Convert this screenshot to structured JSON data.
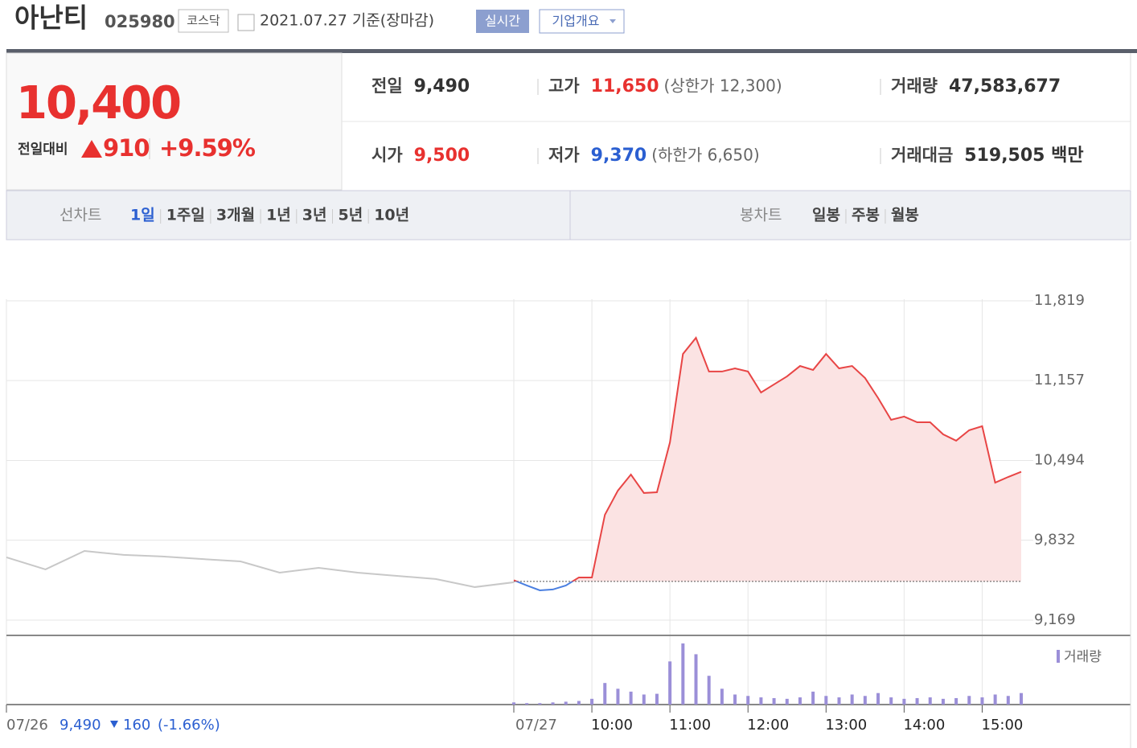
{
  "header": {
    "name": "아난티",
    "code": "025980",
    "market": "코스닥",
    "date": "2021.07.27 기준(장마감)",
    "buttons": [
      "실시간",
      "기업개요"
    ]
  },
  "price": {
    "current": "10,400",
    "change_label": "전일대비",
    "change": "910",
    "rate": "+9.59%"
  },
  "stats": [
    {
      "label": "전일",
      "value": "9,490"
    },
    {
      "label": "고가",
      "value": "11,650",
      "limit": "(상한가 12,300)"
    },
    {
      "label": "거래량",
      "value": "47,583,677"
    },
    {
      "label": "시가",
      "value": "9,500"
    },
    {
      "label": "저가",
      "value": "9,370",
      "limit": "(하한가 6,650)"
    },
    {
      "label": "거래대금",
      "value": "519,505 백만"
    }
  ],
  "tabs": {
    "line_label": "선차트",
    "line": [
      "1일",
      "1주일",
      "3개월",
      "1년",
      "3년",
      "5년",
      "10년"
    ],
    "candle_label": "봉차트",
    "candle": [
      "일봉",
      "주봉",
      "월봉"
    ]
  },
  "chart": {
    "ylim": [
      9042,
      11819
    ],
    "yticks": [
      {
        "value": 11819,
        "label": "11,819"
      },
      {
        "value": 11157,
        "label": "11,157"
      },
      {
        "value": 10494,
        "label": "10,494"
      },
      {
        "value": 9832,
        "label": "9,832"
      },
      {
        "value": 9169,
        "label": "9,169"
      }
    ],
    "xlim": [
      -390,
      390
    ],
    "xticks": [
      {
        "value": -390,
        "label": "07/26"
      },
      {
        "value": 0,
        "label": "07/27"
      },
      {
        "value": 60,
        "label": "10:00"
      },
      {
        "value": 120,
        "label": "11:00"
      },
      {
        "value": 180,
        "label": "12:00"
      },
      {
        "value": 240,
        "label": "13:00"
      },
      {
        "value": 300,
        "label": "14:00"
      },
      {
        "value": 360,
        "label": "15:00"
      }
    ],
    "base": 9490,
    "prev": {
      "x": [
        -390,
        -360,
        -330,
        -300,
        -270,
        -240,
        -210,
        -180,
        -150,
        -120,
        -90,
        -60,
        -30,
        0
      ],
      "values": [
        9690,
        9590,
        9743,
        9710,
        9697,
        9676,
        9656,
        9563,
        9603,
        9563,
        9536,
        9510,
        9443,
        9483
      ]
    },
    "today": {
      "x": [
        0,
        10,
        20,
        30,
        40,
        50,
        60,
        70,
        80,
        90,
        100,
        110,
        120,
        130,
        140,
        150,
        160,
        170,
        180,
        190,
        200,
        210,
        220,
        230,
        240,
        250,
        260,
        270,
        280,
        290,
        300,
        310,
        320,
        330,
        340,
        350,
        360,
        370,
        380,
        390
      ],
      "values": [
        9500,
        9456,
        9416,
        9423,
        9456,
        9523,
        9523,
        10043,
        10244,
        10377,
        10224,
        10230,
        10644,
        11378,
        11512,
        11232,
        11232,
        11258,
        11232,
        11058,
        11125,
        11192,
        11278,
        11245,
        11378,
        11258,
        11278,
        11178,
        11012,
        10831,
        10858,
        10811,
        10811,
        10711,
        10658,
        10745,
        10778,
        10310,
        10357,
        10400
      ],
      "volume": [
        3,
        2,
        2,
        3,
        4,
        5,
        8,
        30,
        22,
        18,
        14,
        15,
        60,
        85,
        70,
        40,
        22,
        14,
        12,
        10,
        9,
        8,
        10,
        18,
        12,
        10,
        14,
        12,
        16,
        10,
        8,
        9,
        10,
        8,
        9,
        12,
        10,
        14,
        12,
        16
      ]
    },
    "volume_label": "거래량",
    "footer": {
      "date": "07/26",
      "close": "9,490",
      "change": "160",
      "rate": "(-1.66%)"
    }
  }
}
